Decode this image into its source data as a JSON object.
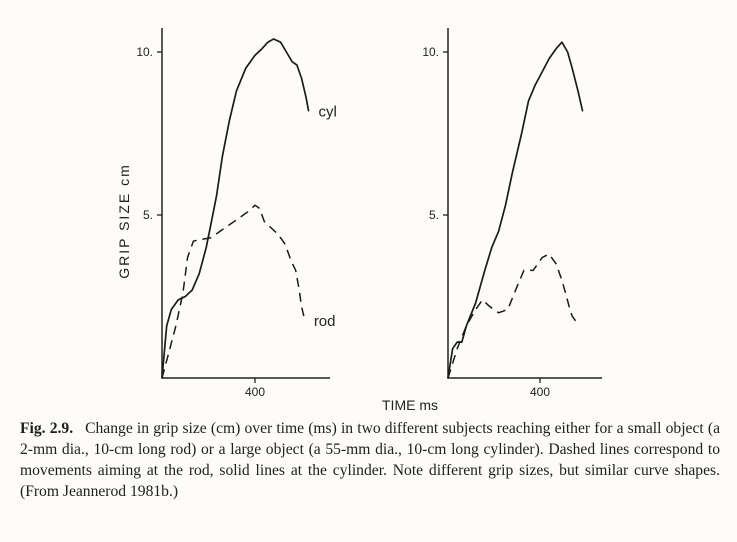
{
  "figure": {
    "caption_label": "Fig. 2.9.",
    "caption_text": "Change in grip size (cm) over time (ms) in two different subjects reaching either for a small object (a 2-mm dia., 10-cm long rod) or a large object (a 55-mm dia., 10-cm long cylinder). Dashed lines correspond to movements aiming at the rod, solid lines at the cylinder. Note different grip sizes, but similar curve shapes. (From Jeannerod 1981b.)"
  },
  "chart_data": [
    {
      "type": "line",
      "panel": "left",
      "ylabel": "GRIP SIZE cm",
      "xlabel": "TIME ms",
      "xticks": [
        400
      ],
      "yticks": [
        5,
        10
      ],
      "xlim": [
        0,
        720
      ],
      "ylim": [
        0,
        10.6
      ],
      "series": [
        {
          "name": "cyl",
          "style": "solid",
          "points": [
            [
              0,
              0
            ],
            [
              20,
              1.6
            ],
            [
              40,
              2.1
            ],
            [
              70,
              2.4
            ],
            [
              100,
              2.5
            ],
            [
              130,
              2.7
            ],
            [
              160,
              3.2
            ],
            [
              190,
              4.0
            ],
            [
              210,
              4.7
            ],
            [
              235,
              5.6
            ],
            [
              260,
              6.8
            ],
            [
              290,
              7.9
            ],
            [
              320,
              8.8
            ],
            [
              360,
              9.5
            ],
            [
              400,
              9.9
            ],
            [
              430,
              10.1
            ],
            [
              455,
              10.3
            ],
            [
              480,
              10.4
            ],
            [
              510,
              10.3
            ],
            [
              535,
              10.0
            ],
            [
              560,
              9.7
            ],
            [
              580,
              9.6
            ],
            [
              600,
              9.2
            ],
            [
              620,
              8.6
            ],
            [
              630,
              8.2
            ]
          ]
        },
        {
          "name": "rod",
          "style": "dashed",
          "points": [
            [
              0,
              0
            ],
            [
              30,
              0.8
            ],
            [
              60,
              1.6
            ],
            [
              90,
              2.6
            ],
            [
              110,
              3.7
            ],
            [
              135,
              4.2
            ],
            [
              170,
              4.25
            ],
            [
              210,
              4.3
            ],
            [
              250,
              4.5
            ],
            [
              290,
              4.7
            ],
            [
              330,
              4.9
            ],
            [
              370,
              5.1
            ],
            [
              400,
              5.3
            ],
            [
              420,
              5.2
            ],
            [
              440,
              4.8
            ],
            [
              470,
              4.6
            ],
            [
              500,
              4.4
            ],
            [
              530,
              4.1
            ],
            [
              555,
              3.6
            ],
            [
              575,
              3.3
            ],
            [
              590,
              2.7
            ],
            [
              600,
              2.2
            ],
            [
              610,
              1.9
            ]
          ]
        }
      ]
    },
    {
      "type": "line",
      "panel": "right",
      "ylabel": "",
      "xlabel": "",
      "xticks": [
        400
      ],
      "yticks": [
        5,
        10
      ],
      "xlim": [
        0,
        720
      ],
      "ylim": [
        0,
        10.6
      ],
      "series": [
        {
          "name": "",
          "style": "solid",
          "points": [
            [
              0,
              0
            ],
            [
              20,
              0.9
            ],
            [
              40,
              1.1
            ],
            [
              60,
              1.1
            ],
            [
              80,
              1.6
            ],
            [
              120,
              2.3
            ],
            [
              160,
              3.3
            ],
            [
              190,
              4.0
            ],
            [
              220,
              4.5
            ],
            [
              250,
              5.3
            ],
            [
              280,
              6.3
            ],
            [
              320,
              7.5
            ],
            [
              350,
              8.5
            ],
            [
              380,
              9.0
            ],
            [
              410,
              9.4
            ],
            [
              440,
              9.8
            ],
            [
              470,
              10.1
            ],
            [
              495,
              10.3
            ],
            [
              520,
              10.0
            ],
            [
              540,
              9.5
            ],
            [
              565,
              8.8
            ],
            [
              585,
              8.2
            ]
          ]
        },
        {
          "name": "",
          "style": "dashed",
          "points": [
            [
              0,
              0
            ],
            [
              40,
              0.9
            ],
            [
              80,
              1.6
            ],
            [
              120,
              2.1
            ],
            [
              150,
              2.4
            ],
            [
              180,
              2.2
            ],
            [
              220,
              2.0
            ],
            [
              260,
              2.1
            ],
            [
              300,
              2.8
            ],
            [
              330,
              3.3
            ],
            [
              370,
              3.3
            ],
            [
              410,
              3.7
            ],
            [
              440,
              3.8
            ],
            [
              470,
              3.5
            ],
            [
              495,
              3.0
            ],
            [
              515,
              2.5
            ],
            [
              530,
              2.1
            ],
            [
              540,
              1.9
            ],
            [
              560,
              1.7
            ]
          ]
        }
      ]
    }
  ]
}
